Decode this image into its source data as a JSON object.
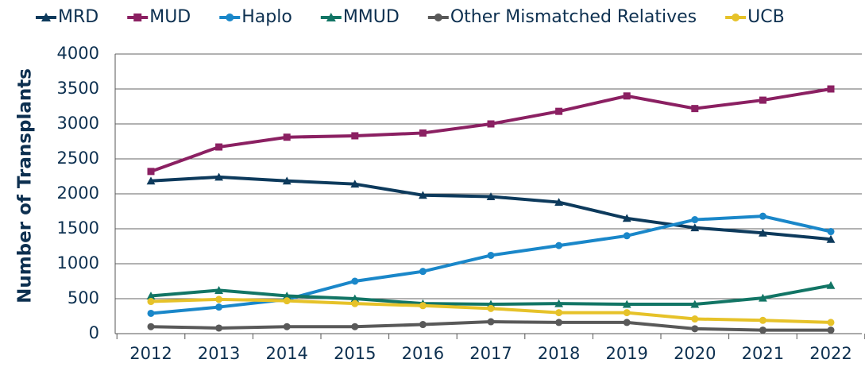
{
  "chart_data": {
    "type": "line",
    "y_label": "Number of Transplants",
    "categories": [
      "2012",
      "2013",
      "2014",
      "2015",
      "2016",
      "2017",
      "2018",
      "2019",
      "2020",
      "2021",
      "2022"
    ],
    "series": [
      {
        "name": "MRD",
        "color": "#0d3a5c",
        "marker": "triangle",
        "values": [
          2185,
          2240,
          2185,
          2140,
          1980,
          1960,
          1880,
          1650,
          1515,
          1440,
          1350
        ]
      },
      {
        "name": "MUD",
        "color": "#8b2062",
        "marker": "square",
        "values": [
          2320,
          2670,
          2810,
          2830,
          2870,
          3000,
          3180,
          3400,
          3220,
          3340,
          3500
        ]
      },
      {
        "name": "Haplo",
        "color": "#1a87c9",
        "marker": "circle",
        "values": [
          290,
          380,
          490,
          750,
          890,
          1120,
          1260,
          1400,
          1630,
          1680,
          1460
        ]
      },
      {
        "name": "MMUD",
        "color": "#127565",
        "marker": "triangle",
        "values": [
          540,
          620,
          540,
          500,
          430,
          420,
          430,
          420,
          420,
          510,
          690
        ]
      },
      {
        "name": "Other Mismatched Relatives",
        "color": "#595959",
        "marker": "circle",
        "values": [
          100,
          80,
          100,
          100,
          130,
          170,
          160,
          160,
          70,
          50,
          50
        ]
      },
      {
        "name": "UCB",
        "color": "#e6c229",
        "marker": "circle",
        "values": [
          460,
          490,
          470,
          430,
          400,
          360,
          300,
          300,
          210,
          190,
          160
        ]
      }
    ],
    "ylim": [
      0,
      4000
    ],
    "yticks": [
      0,
      500,
      1000,
      1500,
      2000,
      2500,
      3000,
      3500,
      4000
    ],
    "grid": true,
    "legend": "top"
  }
}
